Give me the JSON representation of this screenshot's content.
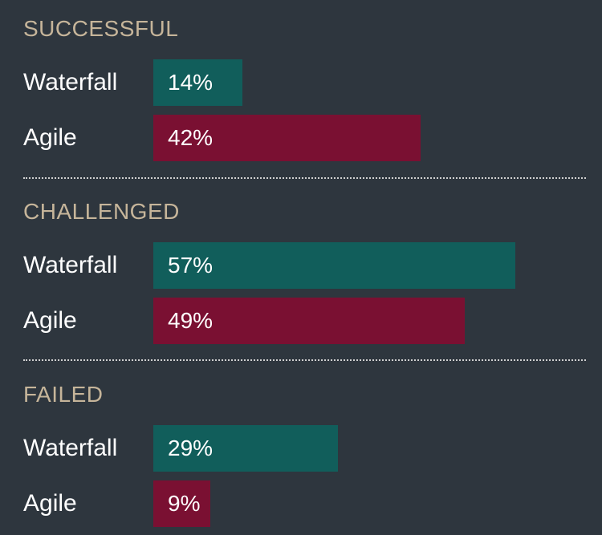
{
  "colors": {
    "background": "#2e363e",
    "section_title": "#c6b59a",
    "waterfall": "#115e5b",
    "agile": "#7a1032",
    "text": "#ffffff",
    "divider": "#d0d0d0"
  },
  "chart_data": {
    "type": "bar",
    "orientation": "horizontal",
    "xlim": [
      0,
      100
    ],
    "unit": "%",
    "grid": false,
    "groups": [
      {
        "title": "SUCCESSFUL",
        "bars": [
          {
            "name": "Waterfall",
            "value": 14,
            "label": "14%"
          },
          {
            "name": "Agile",
            "value": 42,
            "label": "42%"
          }
        ]
      },
      {
        "title": "CHALLENGED",
        "bars": [
          {
            "name": "Waterfall",
            "value": 57,
            "label": "57%"
          },
          {
            "name": "Agile",
            "value": 49,
            "label": "49%"
          }
        ]
      },
      {
        "title": "FAILED",
        "bars": [
          {
            "name": "Waterfall",
            "value": 29,
            "label": "29%"
          },
          {
            "name": "Agile",
            "value": 9,
            "label": "9%"
          }
        ]
      }
    ]
  }
}
